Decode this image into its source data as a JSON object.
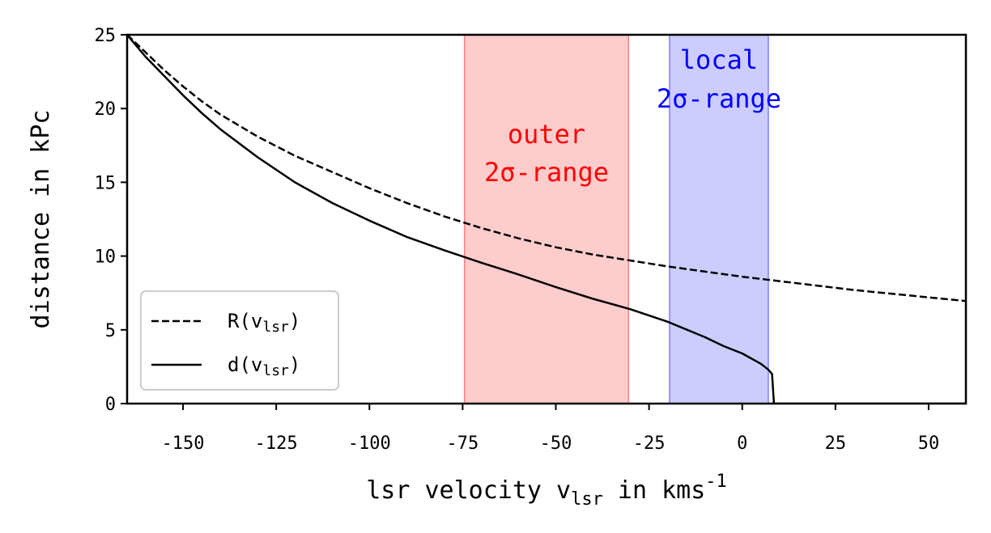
{
  "chart_data": {
    "type": "line",
    "title": "",
    "xlabel": "lsr velocity v",
    "xlabel_subscript": "lsr",
    "xlabel_suffix": " in kms",
    "xlabel_superscript": "-1",
    "ylabel": "distance in kPc",
    "xlim": [
      -165,
      60
    ],
    "ylim": [
      0,
      25
    ],
    "xticks": [
      -150,
      -125,
      -100,
      -75,
      -50,
      -25,
      0,
      25,
      50
    ],
    "xtick_labels": [
      "-150",
      "-125",
      "-100",
      "-75",
      "-50",
      "-25",
      "0",
      "25",
      "50"
    ],
    "yticks": [
      0,
      5,
      10,
      15,
      20,
      25
    ],
    "ytick_labels": [
      "0",
      "5",
      "10",
      "15",
      "20",
      "25"
    ],
    "grid": false,
    "legend_position": "lower-left",
    "bands": [
      {
        "name": "outer",
        "label_line1": "outer",
        "label_line2": "2σ-range",
        "x0": -74.5,
        "x1": -30.5,
        "fill": "#ff9999",
        "edge": "#ff8080",
        "text_color": "#ff0000"
      },
      {
        "name": "local",
        "label_line1": "local",
        "label_line2": "2σ-range",
        "x0": -19.5,
        "x1": 7,
        "fill": "#9999ff",
        "edge": "#8080ff",
        "text_color": "#0000ff"
      }
    ],
    "series": [
      {
        "name": "R(v",
        "name_sub": "lsr",
        "name_suffix": ")",
        "style": "dashed",
        "color": "#000000",
        "x": [
          -165,
          -160,
          -155,
          -150,
          -145,
          -140,
          -130,
          -120,
          -110,
          -100,
          -90,
          -80,
          -70,
          -60,
          -50,
          -40,
          -30,
          -20,
          -10,
          0,
          10,
          20,
          30,
          40,
          50,
          60
        ],
        "y": [
          25.0,
          23.8,
          22.6,
          21.5,
          20.5,
          19.6,
          18.1,
          16.8,
          15.7,
          14.6,
          13.6,
          12.7,
          11.9,
          11.2,
          10.6,
          10.1,
          9.7,
          9.3,
          8.95,
          8.6,
          8.3,
          8.0,
          7.7,
          7.45,
          7.2,
          6.95
        ]
      },
      {
        "name": "d(v",
        "name_sub": "lsr",
        "name_suffix": ")",
        "style": "solid",
        "color": "#000000",
        "x": [
          -165,
          -160,
          -155,
          -150,
          -145,
          -140,
          -130,
          -120,
          -110,
          -100,
          -90,
          -80,
          -70,
          -60,
          -50,
          -40,
          -30,
          -20,
          -10,
          -5,
          0,
          5,
          7,
          8,
          8.5,
          60
        ],
        "y": [
          25.0,
          23.5,
          22.2,
          20.9,
          19.7,
          18.6,
          16.7,
          15.0,
          13.6,
          12.4,
          11.3,
          10.4,
          9.55,
          8.75,
          7.9,
          7.1,
          6.4,
          5.55,
          4.5,
          3.9,
          3.4,
          2.7,
          2.3,
          2.0,
          0.0,
          0.0
        ]
      }
    ]
  }
}
